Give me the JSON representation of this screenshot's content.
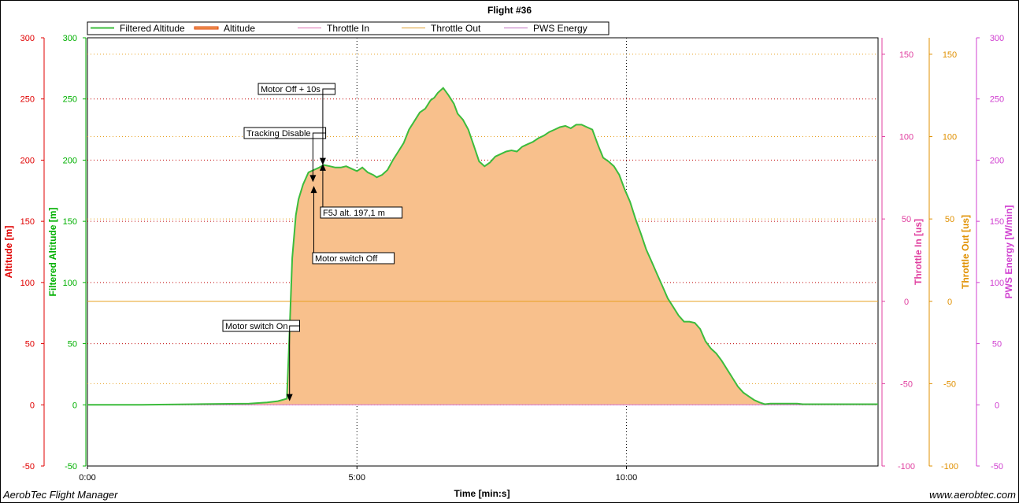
{
  "chart_data": {
    "type": "area",
    "title": "Flight #36",
    "xlabel": "Time [min:s]",
    "x_ticks": [
      "0:00",
      "5:00",
      "10:00"
    ],
    "x_tick_seconds": [
      0,
      300,
      600
    ],
    "xlim_seconds": [
      0,
      880
    ],
    "legend": [
      "Filtered Altitude",
      "Altitude",
      "Throttle In",
      "Throttle Out",
      "PWS Energy"
    ],
    "axes": [
      {
        "label": "Altitude [m]",
        "ticks": [
          "300",
          "250",
          "200",
          "150",
          "100",
          "50",
          "0",
          "-50"
        ],
        "ylim": [
          -50,
          300
        ],
        "color": "#e00000"
      },
      {
        "label": "Filtered Altitude [m]",
        "ticks": [
          "300",
          "250",
          "200",
          "150",
          "100",
          "50",
          "0",
          "-50"
        ],
        "ylim": [
          -50,
          300
        ],
        "color": "#00b000"
      },
      {
        "label": "Throttle In [us]",
        "ticks": [
          "150",
          "100",
          "50",
          "0",
          "-50",
          "-100"
        ],
        "ylim": [
          -100,
          160
        ],
        "color": "#e040a0"
      },
      {
        "label": "Throttle Out [us]",
        "ticks": [
          "150",
          "100",
          "50",
          "0",
          "-50",
          "-100"
        ],
        "ylim": [
          -100,
          160
        ],
        "color": "#e09000"
      },
      {
        "label": "PWS Energy [W/min]",
        "ticks": [
          "300",
          "250",
          "200",
          "150",
          "100",
          "50",
          "0",
          "-50"
        ],
        "ylim": [
          -50,
          300
        ],
        "color": "#d040d0"
      }
    ],
    "series": [
      {
        "name": "Filtered Altitude",
        "x_seconds": [
          0,
          60,
          120,
          180,
          200,
          212,
          222,
          225,
          228,
          232,
          235,
          240,
          246,
          252,
          258,
          263,
          270,
          276,
          282,
          288,
          294,
          300,
          306,
          312,
          318,
          322,
          328,
          334,
          340,
          346,
          352,
          358,
          364,
          370,
          376,
          382,
          386,
          390,
          396,
          402,
          408,
          412,
          418,
          424,
          430,
          436,
          442,
          448,
          454,
          460,
          466,
          472,
          478,
          484,
          490,
          496,
          502,
          508,
          514,
          520,
          526,
          532,
          538,
          544,
          550,
          556,
          562,
          568,
          574,
          580,
          586,
          592,
          598,
          604,
          610,
          616,
          622,
          628,
          634,
          640,
          646,
          652,
          658,
          664,
          670,
          676,
          682,
          688,
          694,
          700,
          706,
          712,
          718,
          724,
          730,
          736,
          742,
          748,
          754,
          760,
          766,
          772,
          778,
          784,
          790,
          796,
          802,
          808,
          812,
          816,
          820,
          880
        ],
        "altitude_m": [
          0,
          0,
          0.5,
          1,
          2,
          3,
          5,
          60,
          120,
          155,
          168,
          180,
          190,
          192,
          194,
          196,
          195,
          194,
          194,
          195,
          193,
          191,
          194,
          190,
          188,
          186,
          188,
          192,
          200,
          207,
          214,
          225,
          232,
          239,
          242,
          249,
          251,
          255,
          259,
          253,
          246,
          238,
          233,
          225,
          212,
          199,
          195,
          198,
          203,
          205,
          207,
          208,
          207,
          211,
          213,
          215,
          218,
          220,
          223,
          225,
          227,
          228,
          226,
          229,
          229,
          227,
          225,
          213,
          202,
          199,
          195,
          188,
          176,
          166,
          152,
          140,
          127,
          117,
          107,
          97,
          87,
          80,
          73,
          68,
          68,
          67,
          62,
          52,
          46,
          42,
          36,
          29,
          22,
          15,
          10,
          7,
          4,
          2,
          0.5,
          1,
          1,
          1,
          1,
          1,
          1,
          0.5,
          0.5,
          0.5,
          0.5,
          0.5,
          0.5,
          0.5
        ]
      },
      {
        "name": "Throttle Out",
        "constant_us": 0
      }
    ],
    "annotations": [
      {
        "label": "Motor switch On",
        "x_seconds": 225,
        "y_m": 3
      },
      {
        "label": "Tracking Disable",
        "x_seconds": 251,
        "y_m": 182
      },
      {
        "label": "Motor switch Off",
        "x_seconds": 252,
        "y_m": 179
      },
      {
        "label": "Motor Off + 10s",
        "x_seconds": 262,
        "y_m": 196
      },
      {
        "label": "F5J alt. 197,1 m",
        "x_seconds": 262,
        "y_m": 197.1
      }
    ],
    "grid": true,
    "legend_position": "top-left"
  },
  "footer": {
    "left": "AerobTec Flight Manager",
    "right": "www.aerobtec.com"
  },
  "colors": {
    "fill": "#f8c08c",
    "line": "#3cbc3c",
    "grid": "#c00000",
    "throttle_out": "#e8a020",
    "pws": "#d070d0"
  }
}
